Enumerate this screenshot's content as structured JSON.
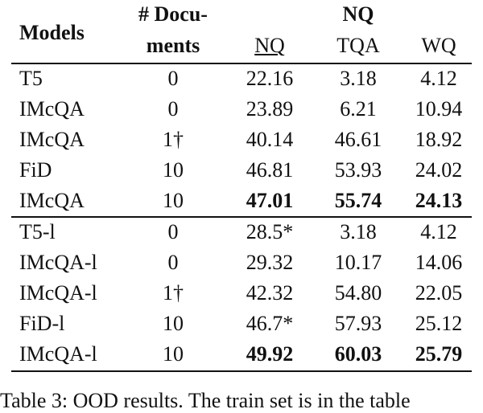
{
  "table": {
    "header": {
      "models": "Models",
      "docs_line1": "# Docu-",
      "docs_line2": "ments",
      "group": "NQ",
      "columns": [
        "NQ",
        "TQA",
        "WQ"
      ]
    },
    "groups": [
      {
        "bold_row": 4,
        "rows": [
          [
            "T5",
            "0",
            "22.16",
            "3.18",
            "4.12"
          ],
          [
            "IMcQA",
            "0",
            "23.89",
            "6.21",
            "10.94"
          ],
          [
            "IMcQA",
            "1†",
            "40.14",
            "46.61",
            "18.92"
          ],
          [
            "FiD",
            "10",
            "46.81",
            "53.93",
            "24.02"
          ],
          [
            "IMcQA",
            "10",
            "47.01",
            "55.74",
            "24.13"
          ]
        ]
      },
      {
        "bold_row": 4,
        "rows": [
          [
            "T5-l",
            "0",
            "28.5*",
            "3.18",
            "4.12"
          ],
          [
            "IMcQA-l",
            "0",
            "29.32",
            "10.17",
            "14.06"
          ],
          [
            "IMcQA-l",
            "1†",
            "42.32",
            "54.80",
            "22.05"
          ],
          [
            "FiD-l",
            "10",
            "46.7*",
            "57.93",
            "25.12"
          ],
          [
            "IMcQA-l",
            "10",
            "49.92",
            "60.03",
            "25.79"
          ]
        ]
      }
    ]
  },
  "caption": "Table 3: OOD results. The train set is in the table"
}
